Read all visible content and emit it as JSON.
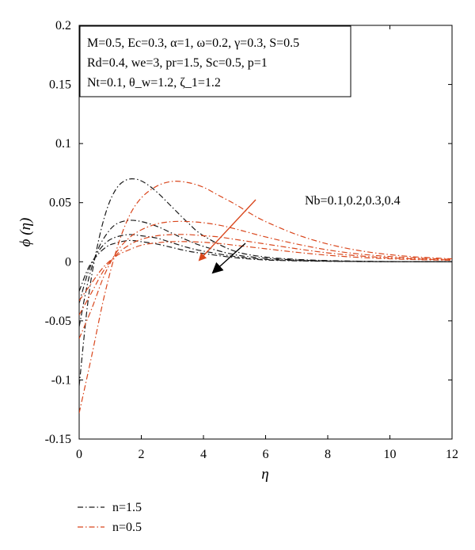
{
  "chart_data": {
    "type": "line",
    "xlabel": "η",
    "ylabel": "ϕ (η)",
    "xlim": [
      0,
      12
    ],
    "ylim": [
      -0.15,
      0.2
    ],
    "xticks": [
      0,
      2,
      4,
      6,
      8,
      10,
      12
    ],
    "yticks": [
      -0.15,
      -0.1,
      -0.05,
      0,
      0.05,
      0.1,
      0.15,
      0.2
    ],
    "xtick_labels": [
      "0",
      "2",
      "4",
      "6",
      "8",
      "10",
      "12"
    ],
    "ytick_labels": [
      "-0.15",
      "-0.1",
      "-0.05",
      "0",
      "0.05",
      "0.1",
      "0.15",
      "0.2"
    ],
    "grid": false,
    "params_box": [
      "M=0.5, Ec=0.3, α=1, ω=0.2, γ=0.3, S=0.5",
      "Rd=0.4, we=3, pr=1.5, Sc=0.5, p=1",
      "Nt=0.1, θ_w=1.2, ζ_1=1.2"
    ],
    "annotation": "Nb=0.1,0.2,0.3,0.4",
    "legend": [
      {
        "label": "n=1.5",
        "color": "#1a1a1a"
      },
      {
        "label": "n=0.5",
        "color": "#d9461c"
      }
    ],
    "series": [
      {
        "group": "n=1.5",
        "Nb": 0.1,
        "color": "#1a1a1a",
        "x": [
          0,
          0.3,
          0.6,
          0.9,
          1.2,
          1.5,
          1.8,
          2.1,
          2.5,
          3,
          3.5,
          4,
          5,
          6,
          7,
          8,
          9,
          10,
          11,
          12
        ],
        "y": [
          -0.105,
          -0.03,
          0.015,
          0.045,
          0.062,
          0.069,
          0.07,
          0.067,
          0.059,
          0.046,
          0.033,
          0.022,
          0.009,
          0.004,
          0.002,
          0.001,
          0.0005,
          0.0002,
          0.0001,
          0
        ]
      },
      {
        "group": "n=1.5",
        "Nb": 0.2,
        "color": "#1a1a1a",
        "x": [
          0,
          0.3,
          0.6,
          0.9,
          1.2,
          1.6,
          2,
          2.5,
          3,
          3.5,
          4,
          5,
          6,
          7,
          8,
          9,
          10,
          12
        ],
        "y": [
          -0.055,
          -0.015,
          0.01,
          0.024,
          0.032,
          0.035,
          0.034,
          0.03,
          0.024,
          0.018,
          0.013,
          0.006,
          0.003,
          0.0015,
          0.0007,
          0.0003,
          0.0001,
          0
        ]
      },
      {
        "group": "n=1.5",
        "Nb": 0.3,
        "color": "#1a1a1a",
        "x": [
          0,
          0.3,
          0.6,
          0.9,
          1.2,
          1.6,
          2,
          2.5,
          3,
          3.5,
          4,
          5,
          6,
          7,
          8,
          9,
          10,
          12
        ],
        "y": [
          -0.035,
          -0.008,
          0.008,
          0.017,
          0.021,
          0.023,
          0.022,
          0.02,
          0.016,
          0.012,
          0.009,
          0.0045,
          0.002,
          0.001,
          0.0005,
          0.0002,
          0.0001,
          0
        ]
      },
      {
        "group": "n=1.5",
        "Nb": 0.4,
        "color": "#1a1a1a",
        "x": [
          0,
          0.3,
          0.6,
          0.9,
          1.2,
          1.6,
          2,
          2.5,
          3,
          3.5,
          4,
          5,
          6,
          7,
          8,
          9,
          10,
          12
        ],
        "y": [
          -0.025,
          -0.005,
          0.006,
          0.013,
          0.016,
          0.018,
          0.017,
          0.015,
          0.012,
          0.009,
          0.007,
          0.0035,
          0.0015,
          0.0008,
          0.0004,
          0.0002,
          0.0001,
          0
        ]
      },
      {
        "group": "n=0.5",
        "Nb": 0.1,
        "color": "#d9461c",
        "x": [
          0,
          0.4,
          0.8,
          1.2,
          1.6,
          2,
          2.5,
          3,
          3.5,
          4,
          4.5,
          5,
          5.5,
          6,
          7,
          8,
          9,
          10,
          11,
          12
        ],
        "y": [
          -0.128,
          -0.08,
          -0.03,
          0.01,
          0.038,
          0.054,
          0.064,
          0.068,
          0.067,
          0.063,
          0.056,
          0.049,
          0.041,
          0.034,
          0.023,
          0.015,
          0.0095,
          0.006,
          0.0038,
          0.0025
        ]
      },
      {
        "group": "n=0.5",
        "Nb": 0.2,
        "color": "#d9461c",
        "x": [
          0,
          0.4,
          0.8,
          1.2,
          1.6,
          2,
          2.5,
          3,
          3.5,
          4,
          4.5,
          5,
          6,
          7,
          8,
          9,
          10,
          11,
          12
        ],
        "y": [
          -0.065,
          -0.04,
          -0.012,
          0.008,
          0.02,
          0.027,
          0.032,
          0.034,
          0.034,
          0.033,
          0.031,
          0.028,
          0.021,
          0.015,
          0.01,
          0.0066,
          0.0044,
          0.003,
          0.002
        ]
      },
      {
        "group": "n=0.5",
        "Nb": 0.3,
        "color": "#d9461c",
        "x": [
          0,
          0.4,
          0.8,
          1.2,
          1.6,
          2,
          2.5,
          3,
          3.5,
          4,
          4.5,
          5,
          6,
          7,
          8,
          9,
          10,
          11,
          12
        ],
        "y": [
          -0.045,
          -0.026,
          -0.007,
          0.006,
          0.014,
          0.019,
          0.022,
          0.023,
          0.023,
          0.022,
          0.021,
          0.019,
          0.015,
          0.011,
          0.0075,
          0.005,
          0.0033,
          0.0022,
          0.0015
        ]
      },
      {
        "group": "n=0.5",
        "Nb": 0.4,
        "color": "#d9461c",
        "x": [
          0,
          0.4,
          0.8,
          1.2,
          1.6,
          2,
          2.5,
          3,
          3.5,
          4,
          4.5,
          5,
          6,
          7,
          8,
          9,
          10,
          11,
          12
        ],
        "y": [
          -0.033,
          -0.018,
          -0.004,
          0.005,
          0.01,
          0.014,
          0.016,
          0.017,
          0.017,
          0.0165,
          0.0155,
          0.014,
          0.011,
          0.008,
          0.0055,
          0.0037,
          0.0025,
          0.0017,
          0.0012
        ]
      }
    ]
  }
}
